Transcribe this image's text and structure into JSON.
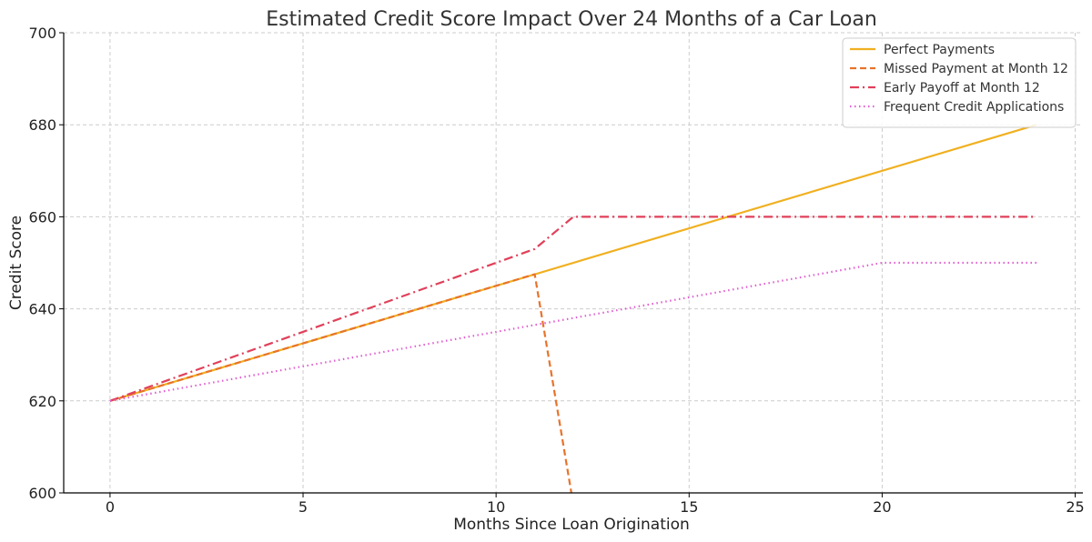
{
  "chart_data": {
    "type": "line",
    "title": "Estimated Credit Score Impact Over 24 Months of a Car Loan",
    "xlabel": "Months Since Loan Origination",
    "ylabel": "Credit Score",
    "xlim": [
      -1.2,
      25.2
    ],
    "ylim": [
      600,
      700
    ],
    "xticks": [
      0,
      5,
      10,
      15,
      20,
      25
    ],
    "yticks": [
      600,
      620,
      640,
      660,
      680,
      700
    ],
    "grid": true,
    "legend_position": "top-right",
    "series": [
      {
        "name": "Perfect Payments",
        "color": "#f0b020",
        "style": "solid",
        "x": [
          0,
          24
        ],
        "y": [
          620,
          680
        ]
      },
      {
        "name": "Missed Payment at Month 12",
        "color": "#e8732a",
        "style": "dashed",
        "x": [
          0,
          11,
          12
        ],
        "y": [
          620,
          647.5,
          597.5
        ]
      },
      {
        "name": "Early Payoff at Month 12",
        "color": "#e0405a",
        "style": "dashdot",
        "x": [
          0,
          11,
          12,
          24
        ],
        "y": [
          620,
          653,
          660,
          660
        ]
      },
      {
        "name": "Frequent Credit Applications",
        "color": "#e060d0",
        "style": "dotted",
        "x": [
          0,
          20,
          24
        ],
        "y": [
          620,
          650,
          650
        ]
      }
    ]
  }
}
